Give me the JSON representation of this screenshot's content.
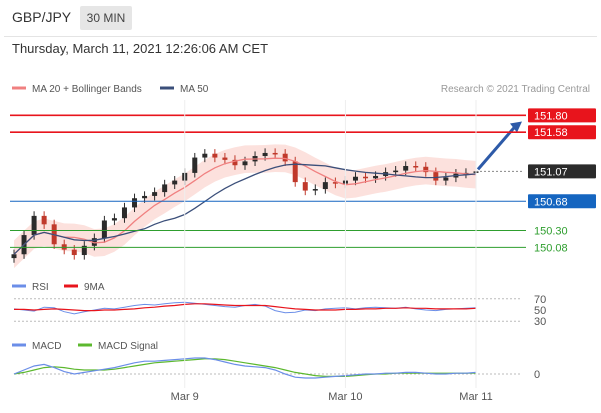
{
  "header": {
    "pair": "GBP/JPY",
    "timeframe": "30 MIN"
  },
  "timestamp": "Thursday, March 11, 2021 12:26:06 AM CET",
  "credit": "Research © 2021 Trading Central",
  "colors": {
    "resistance": "#e8141c",
    "current": "#2b2b2b",
    "pivot": "#1565c0",
    "support": "#2e9e2e",
    "candle_up": "#2b2b2b",
    "candle_down": "#c0392b",
    "ma20": "#f08080",
    "band_fill": "#fbd9d5",
    "ma50": "#3b4f7a",
    "rsi": "#6b8ee8",
    "rsi_ma": "#e8141c",
    "macd": "#6b8ee8",
    "macd_signal": "#5cb82e",
    "arrow": "#2d5aa8"
  },
  "chart_data": [
    {
      "type": "candlestick",
      "legend": [
        "MA 20 + Bollinger Bands",
        "MA 50"
      ],
      "x_ticks": [
        "Mar 9",
        "Mar 10",
        "Mar 11"
      ],
      "ylim": [
        149.85,
        152.0
      ],
      "close": [
        149.99,
        150.24,
        150.49,
        150.38,
        150.12,
        150.05,
        149.98,
        150.1,
        150.2,
        150.43,
        150.46,
        150.6,
        150.72,
        150.75,
        150.8,
        150.9,
        150.95,
        151.05,
        151.25,
        151.3,
        151.25,
        151.22,
        151.15,
        151.2,
        151.27,
        151.31,
        151.3,
        151.2,
        150.93,
        150.82,
        150.84,
        150.93,
        150.91,
        150.95,
        151.0,
        150.98,
        151.01,
        151.06,
        151.08,
        151.14,
        151.13,
        151.06,
        150.95,
        150.99,
        151.04,
        151.05,
        151.07
      ],
      "levels": [
        {
          "label": "151.80",
          "value": 151.8,
          "kind": "resistance"
        },
        {
          "label": "151.58",
          "value": 151.58,
          "kind": "resistance"
        },
        {
          "label": "151.07",
          "value": 151.07,
          "kind": "current"
        },
        {
          "label": "150.68",
          "value": 150.68,
          "kind": "pivot"
        },
        {
          "label": "150.30",
          "value": 150.3,
          "kind": "support"
        },
        {
          "label": "150.08",
          "value": 150.08,
          "kind": "support"
        }
      ]
    },
    {
      "type": "line",
      "name": "RSI",
      "legend": [
        "RSI",
        "9MA"
      ],
      "y_ticks": [
        "70",
        "50",
        "30"
      ],
      "ylim": [
        25,
        75
      ],
      "rsi": [
        52,
        50,
        48,
        55,
        54,
        47,
        43,
        47,
        50,
        53,
        52,
        55,
        58,
        60,
        59,
        61,
        63,
        64,
        62,
        60,
        58,
        56,
        55,
        58,
        60,
        57,
        49,
        45,
        46,
        50,
        49,
        52,
        53,
        54,
        52,
        54,
        55,
        54,
        53,
        55,
        52,
        50,
        49,
        51,
        52,
        53,
        54
      ],
      "ma9": [
        51,
        51,
        50,
        51,
        52,
        51,
        50,
        49,
        49,
        50,
        50,
        51,
        52,
        54,
        55,
        57,
        58,
        60,
        61,
        61,
        60,
        59,
        58,
        58,
        58,
        58,
        56,
        54,
        52,
        51,
        50,
        50,
        50,
        51,
        51,
        52,
        52,
        53,
        53,
        54,
        53,
        53,
        52,
        52,
        52,
        52,
        53
      ]
    },
    {
      "type": "line",
      "name": "MACD",
      "legend": [
        "MACD",
        "MACD Signal"
      ],
      "y_ticks": [
        "0"
      ],
      "ylim": [
        -0.15,
        0.25
      ],
      "macd": [
        0.0,
        0.05,
        0.1,
        0.12,
        0.08,
        0.03,
        0.0,
        0.02,
        0.04,
        0.06,
        0.08,
        0.11,
        0.14,
        0.16,
        0.16,
        0.17,
        0.18,
        0.19,
        0.2,
        0.2,
        0.18,
        0.15,
        0.12,
        0.1,
        0.09,
        0.08,
        0.05,
        0.0,
        -0.04,
        -0.05,
        -0.05,
        -0.04,
        -0.03,
        -0.02,
        -0.01,
        0.0,
        0.0,
        0.01,
        0.01,
        0.02,
        0.02,
        0.01,
        0.0,
        0.0,
        0.01,
        0.01,
        0.02
      ],
      "signal": [
        0.0,
        0.02,
        0.05,
        0.08,
        0.09,
        0.08,
        0.06,
        0.05,
        0.05,
        0.05,
        0.06,
        0.08,
        0.1,
        0.12,
        0.14,
        0.15,
        0.16,
        0.17,
        0.18,
        0.19,
        0.19,
        0.18,
        0.16,
        0.14,
        0.12,
        0.1,
        0.08,
        0.05,
        0.02,
        0.0,
        -0.02,
        -0.03,
        -0.03,
        -0.03,
        -0.02,
        -0.01,
        0.0,
        0.0,
        0.01,
        0.01,
        0.01,
        0.01,
        0.01,
        0.01,
        0.01,
        0.01,
        0.01
      ]
    }
  ]
}
